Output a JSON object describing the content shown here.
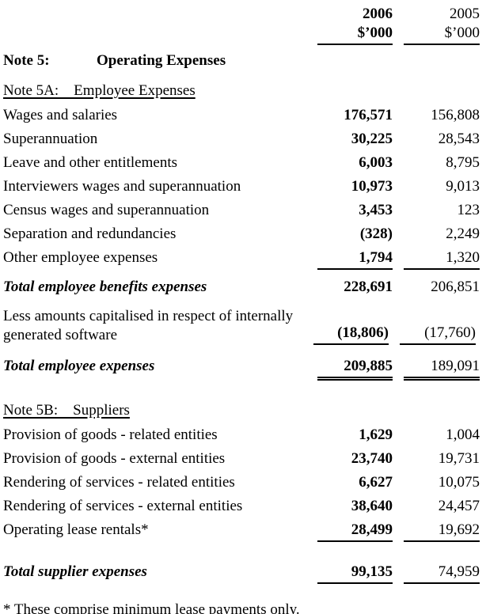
{
  "columns": {
    "year_current": "2006",
    "year_prior": "2005",
    "unit_current": "$’000",
    "unit_prior": "$’000"
  },
  "note5": {
    "label": "Note 5:",
    "title": "Operating Expenses"
  },
  "section_a": {
    "heading": "Note 5A:    Employee Expenses",
    "rows": [
      {
        "label": "Wages and salaries",
        "v2006": "176,571",
        "v2005": "156,808"
      },
      {
        "label": "Superannuation",
        "v2006": "30,225",
        "v2005": "28,543"
      },
      {
        "label": "Leave and other entitlements",
        "v2006": "6,003",
        "v2005": "8,795"
      },
      {
        "label": "Interviewers wages and superannuation",
        "v2006": "10,973",
        "v2005": "9,013"
      },
      {
        "label": "Census wages and superannuation",
        "v2006": "3,453",
        "v2005": "123"
      },
      {
        "label": "Separation and redundancies",
        "v2006": "(328)",
        "v2005": "2,249"
      },
      {
        "label": "Other employee expenses",
        "v2006": "1,794",
        "v2005": "1,320"
      }
    ],
    "total_benefits": {
      "label": "Total employee benefits expenses",
      "v2006": "228,691",
      "v2005": "206,851"
    },
    "less_capitalised": {
      "label": "Less amounts capitalised in respect of internally generated software",
      "v2006": "(18,806)",
      "v2005": "(17,760)"
    },
    "total": {
      "label": "Total employee expenses",
      "v2006": "209,885",
      "v2005": "189,091"
    }
  },
  "section_b": {
    "heading": "Note 5B:    Suppliers",
    "rows": [
      {
        "label": "Provision of goods - related entities",
        "v2006": "1,629",
        "v2005": "1,004"
      },
      {
        "label": "Provision of goods - external entities",
        "v2006": "23,740",
        "v2005": "19,731"
      },
      {
        "label": "Rendering of services - related entities",
        "v2006": "6,627",
        "v2005": "10,075"
      },
      {
        "label": "Rendering of services - external entities",
        "v2006": "38,640",
        "v2005": "24,457"
      },
      {
        "label": "Operating lease rentals*",
        "v2006": "28,499",
        "v2005": "19,692"
      }
    ],
    "total": {
      "label": "Total supplier expenses",
      "v2006": "99,135",
      "v2005": "74,959"
    }
  },
  "footnote": "* These comprise minimum lease payments only."
}
